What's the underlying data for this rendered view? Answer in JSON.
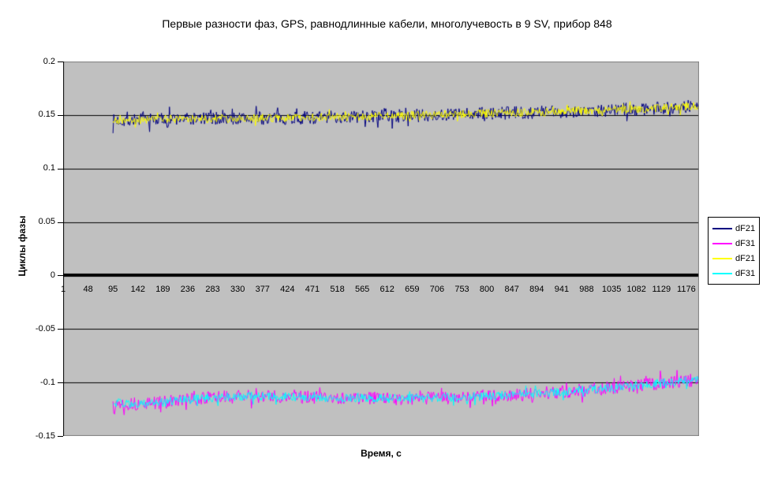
{
  "chart_data": {
    "type": "line",
    "title": "Первые разности фаз, GPS, равнодлинные кабели, многолучевость в 9 SV, прибор 848",
    "xlabel": "Время, с",
    "ylabel": "Циклы фазы",
    "plot_background": "#C0C0C0",
    "plot_border_color": "#808080",
    "axis_color": "#000000",
    "gridline_color": "#000000",
    "grid": true,
    "legend_position": "right",
    "x_range": [
      1,
      1200
    ],
    "ylim": [
      -0.15,
      0.2
    ],
    "y_ticks": [
      0.2,
      0.15,
      0.1,
      0.05,
      0,
      -0.05,
      -0.1,
      -0.15
    ],
    "x_tick_labels": [
      1,
      48,
      95,
      142,
      189,
      236,
      283,
      330,
      377,
      424,
      471,
      518,
      565,
      612,
      659,
      706,
      753,
      800,
      847,
      894,
      941,
      988,
      1035,
      1082,
      1129,
      1176
    ],
    "data_time_span": [
      95,
      1199
    ],
    "trends": {
      "upper": [
        [
          95,
          0.1445
        ],
        [
          130,
          0.1455
        ],
        [
          200,
          0.1462
        ],
        [
          300,
          0.1468
        ],
        [
          400,
          0.1472
        ],
        [
          500,
          0.1478
        ],
        [
          600,
          0.1488
        ],
        [
          700,
          0.15
        ],
        [
          800,
          0.1513
        ],
        [
          900,
          0.1527
        ],
        [
          1000,
          0.1542
        ],
        [
          1100,
          0.1558
        ],
        [
          1199,
          0.1585
        ]
      ],
      "lower": [
        [
          95,
          -0.1185
        ],
        [
          140,
          -0.1205
        ],
        [
          200,
          -0.118
        ],
        [
          270,
          -0.1145
        ],
        [
          350,
          -0.1128
        ],
        [
          450,
          -0.1135
        ],
        [
          550,
          -0.1148
        ],
        [
          650,
          -0.115
        ],
        [
          750,
          -0.1138
        ],
        [
          850,
          -0.1117
        ],
        [
          950,
          -0.1085
        ],
        [
          1050,
          -0.1043
        ],
        [
          1150,
          -0.0995
        ],
        [
          1199,
          -0.0975
        ]
      ]
    },
    "series": [
      {
        "name": "dF21",
        "color": "#000080",
        "trend": "upper",
        "noise_amplitude": 0.0062
      },
      {
        "name": "dF31",
        "color": "#FF00FF",
        "trend": "lower",
        "noise_amplitude": 0.0062
      },
      {
        "name": "dF21",
        "color": "#FFFF00",
        "trend": "upper",
        "noise_amplitude": 0.004
      },
      {
        "name": "dF31",
        "color": "#00FFFF",
        "trend": "lower",
        "noise_amplitude": 0.0042
      }
    ]
  }
}
